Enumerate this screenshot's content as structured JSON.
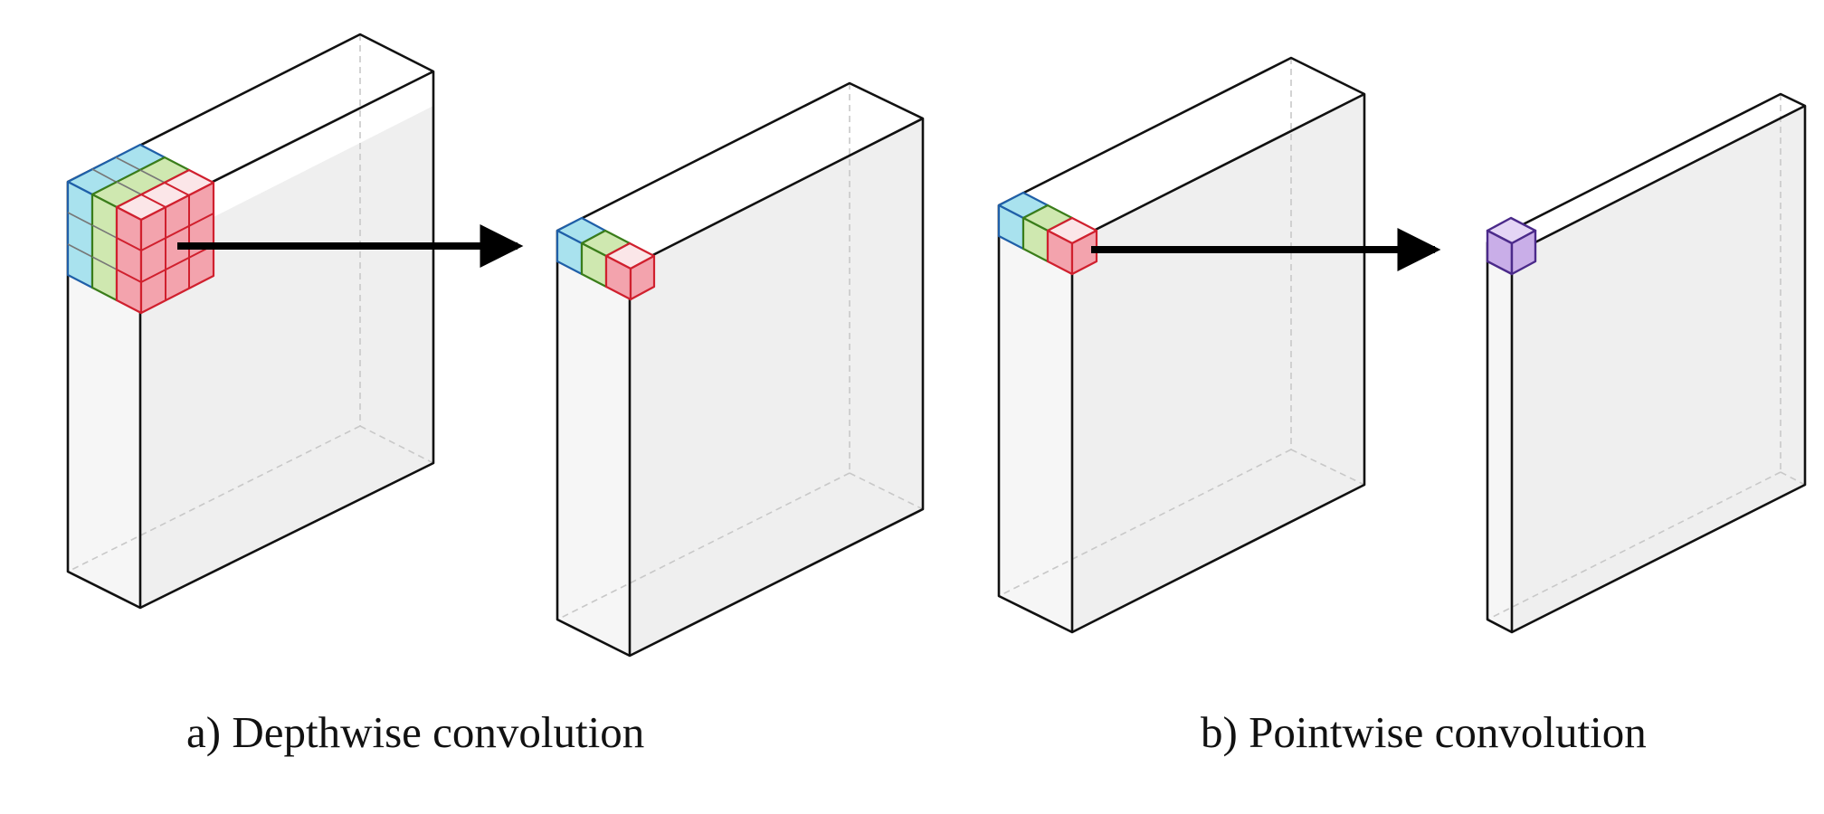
{
  "captions": {
    "depthwise": "a) Depthwise convolution",
    "pointwise": "b) Pointwise convolution"
  },
  "colors": {
    "stroke": "#111111",
    "hidden_edge": "#c8c8c8",
    "side_face": "#efefef",
    "front_face": "#f6f6f6",
    "top_face": "#ffffff",
    "arrow": "#000000",
    "kernel_blue": {
      "fill": "#a9e2ee",
      "stroke": "#1f5fa8"
    },
    "kernel_green": {
      "fill": "#cfe8b0",
      "stroke": "#3a7d1a"
    },
    "kernel_red": {
      "fill": "#f3a3ad",
      "stroke": "#d0202e"
    },
    "output_purple": {
      "fill": "#c9aee8",
      "stroke": "#4b2a8a"
    }
  },
  "figure": {
    "input_channel_colors": [
      "kernel_blue",
      "kernel_green",
      "kernel_red"
    ],
    "pointwise_output_color": "output_purple"
  }
}
